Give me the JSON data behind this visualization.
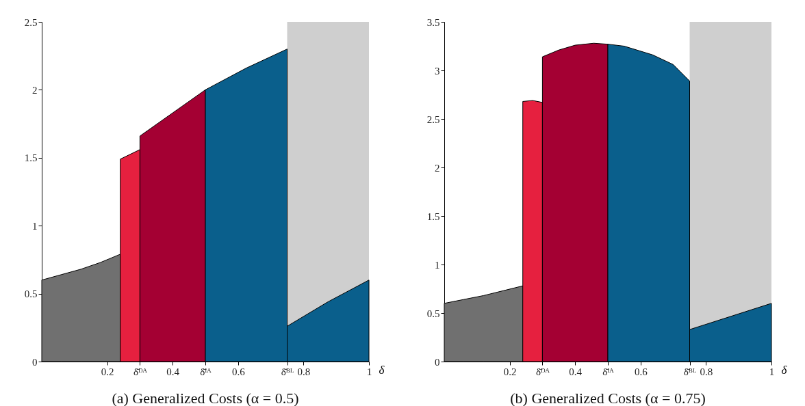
{
  "chart_data": [
    {
      "type": "area",
      "title": "(a) Generalized Costs (α = 0.5)",
      "xlabel": "δ",
      "xlim": [
        0,
        1
      ],
      "ylim": [
        0,
        2.5
      ],
      "xticks": [
        0.2,
        {
          "value": 0.3,
          "label": "δ̄ᴰᴬ"
        },
        0.4,
        {
          "value": 0.5,
          "label": "δ̄ᴵᴬ"
        },
        0.6,
        {
          "value": 0.75,
          "label": "δ̄ᴮᴸ"
        },
        0.8,
        1
      ],
      "yticks": [
        0,
        0.5,
        1,
        1.5,
        2,
        2.5
      ],
      "bands": [
        {
          "axis": "x",
          "from": 0.75,
          "to": 1,
          "color": "#cfcfcf"
        }
      ],
      "series": [
        {
          "color": "#707070",
          "x": [
            0,
            0.06,
            0.12,
            0.18,
            0.24
          ],
          "values": [
            0.6,
            0.64,
            0.68,
            0.73,
            0.79
          ]
        },
        {
          "color": "#e6203f",
          "x": [
            0.24,
            0.3
          ],
          "values": [
            1.49,
            1.56
          ]
        },
        {
          "color": "#a40033",
          "x": [
            0.3,
            0.4,
            0.5
          ],
          "values": [
            1.66,
            1.83,
            2.0
          ]
        },
        {
          "color": "#0a5f8c",
          "x": [
            0.5,
            0.625,
            0.75
          ],
          "values": [
            2.0,
            2.16,
            2.3
          ]
        },
        {
          "color": "#0a5f8c",
          "x": [
            0.75,
            0.875,
            1
          ],
          "values": [
            0.26,
            0.44,
            0.6
          ]
        }
      ]
    },
    {
      "type": "area",
      "title": "(b) Generalized Costs (α = 0.75)",
      "xlabel": "δ",
      "xlim": [
        0,
        1
      ],
      "ylim": [
        0,
        3.5
      ],
      "xticks": [
        0.2,
        {
          "value": 0.3,
          "label": "δ̄ᴰᴬ"
        },
        0.4,
        {
          "value": 0.5,
          "label": "δ̄ᴵᴬ"
        },
        0.6,
        {
          "value": 0.75,
          "label": "δ̄ᴮᴸ"
        },
        0.8,
        1
      ],
      "yticks": [
        0,
        0.5,
        1,
        1.5,
        2,
        2.5,
        3,
        3.5
      ],
      "bands": [
        {
          "axis": "x",
          "from": 0.75,
          "to": 1,
          "color": "#cfcfcf"
        }
      ],
      "series": [
        {
          "color": "#707070",
          "x": [
            0,
            0.06,
            0.12,
            0.18,
            0.24
          ],
          "values": [
            0.6,
            0.64,
            0.68,
            0.73,
            0.78
          ]
        },
        {
          "color": "#e6203f",
          "x": [
            0.24,
            0.27,
            0.3
          ],
          "values": [
            2.68,
            2.69,
            2.67
          ]
        },
        {
          "color": "#a40033",
          "x": [
            0.3,
            0.35,
            0.4,
            0.457,
            0.5
          ],
          "values": [
            3.14,
            3.21,
            3.26,
            3.28,
            3.27
          ]
        },
        {
          "color": "#0a5f8c",
          "x": [
            0.5,
            0.55,
            0.637,
            0.7,
            0.75
          ],
          "values": [
            3.27,
            3.25,
            3.16,
            3.06,
            2.89
          ]
        },
        {
          "color": "#0a5f8c",
          "x": [
            0.75,
            1
          ],
          "values": [
            0.33,
            0.6
          ]
        }
      ]
    }
  ]
}
